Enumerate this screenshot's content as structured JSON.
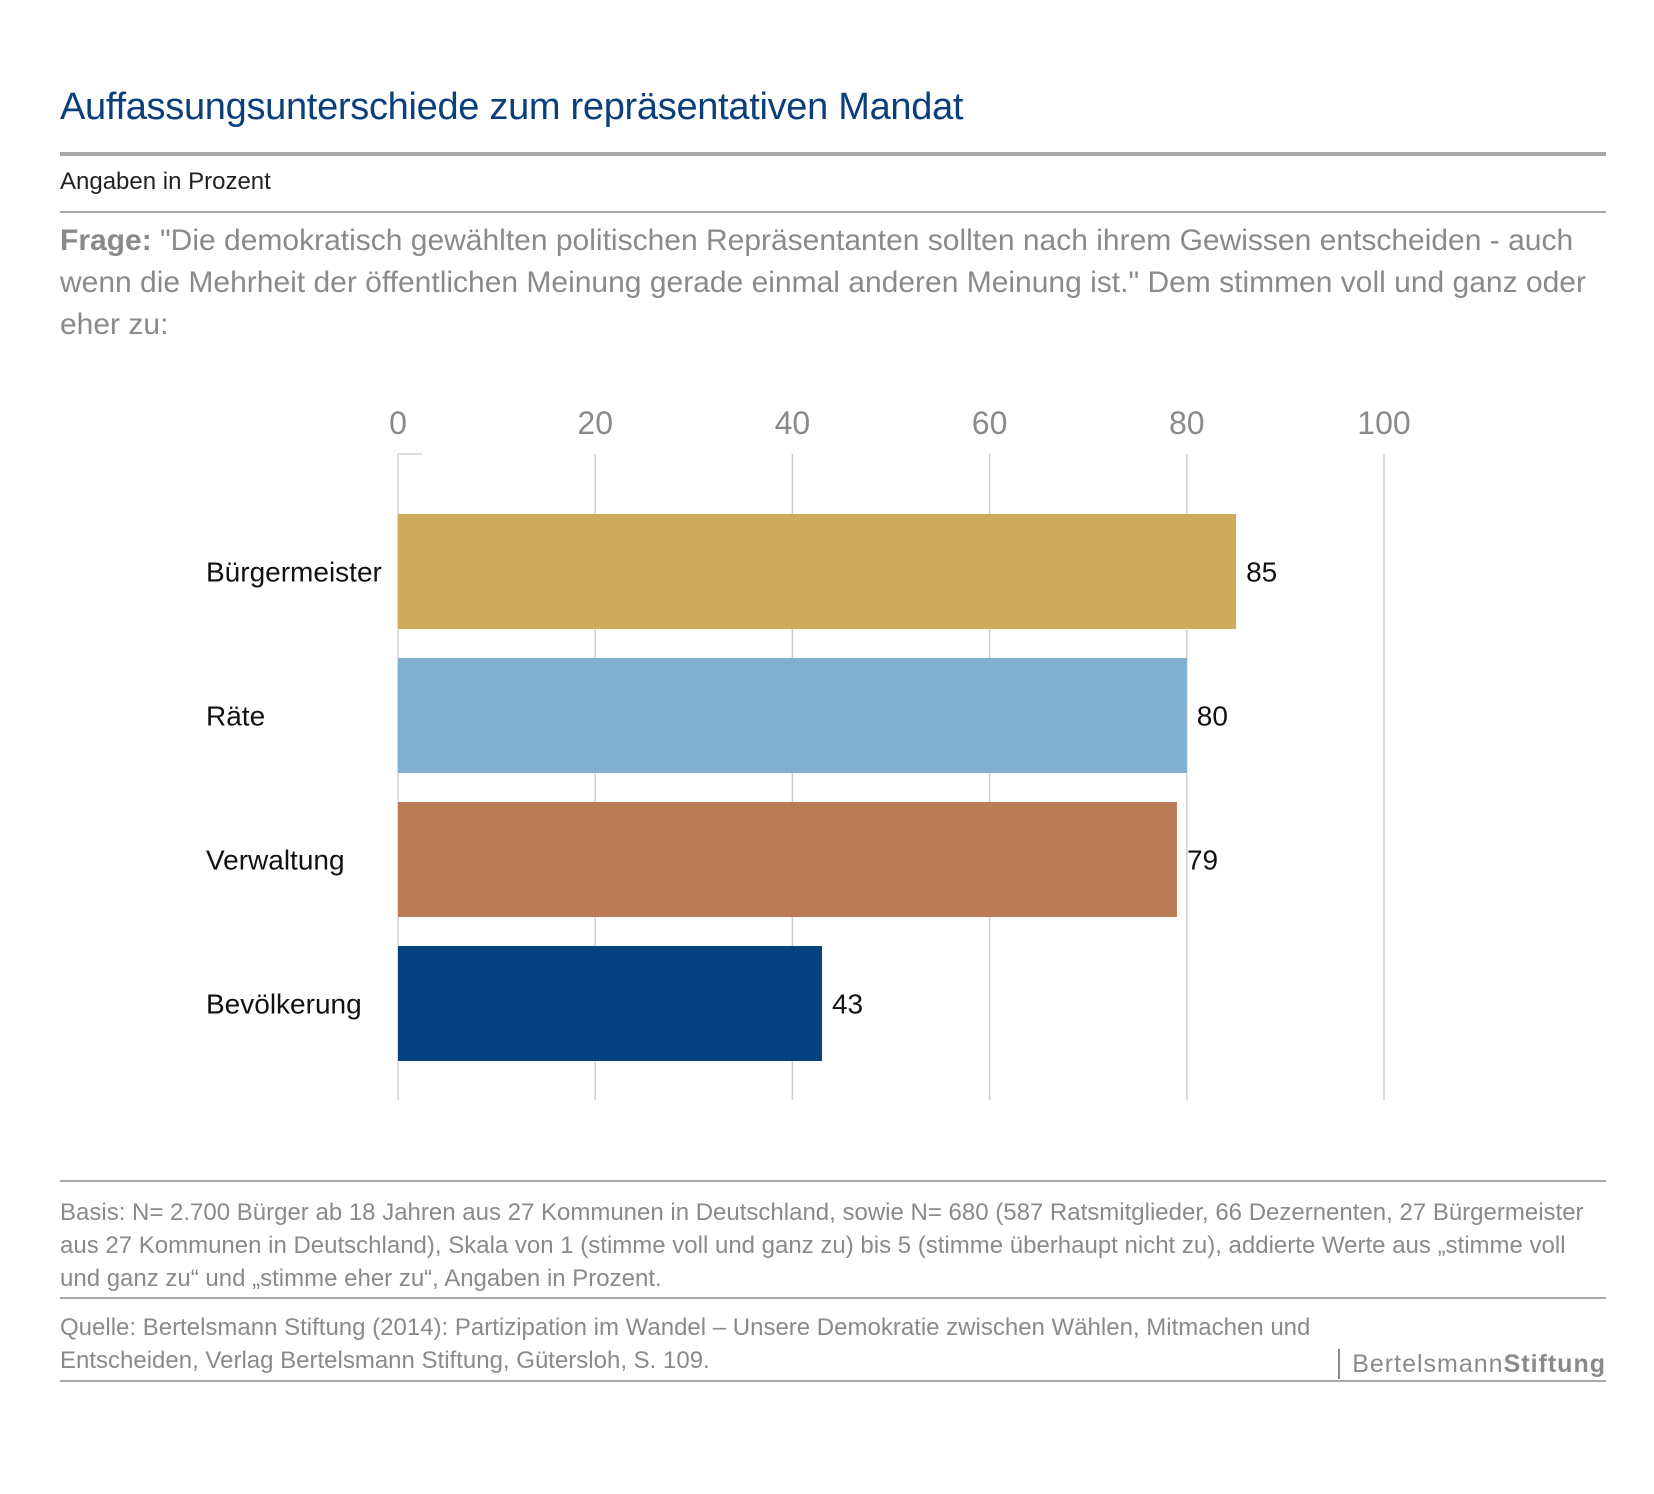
{
  "header": {
    "title": "Auffassungsunterschiede zum repräsentativen Mandat",
    "subtitle": "Angaben in Prozent",
    "question_label": "Frage:",
    "question_text": "\"Die demokratisch gewählten politischen Repräsentanten sollten nach ihrem Gewissen entscheiden - auch wenn die Mehrheit der öffentlichen Meinung gerade einmal anderen Meinung ist.\" Dem stimmen voll und ganz oder eher zu:"
  },
  "chart_data": {
    "type": "bar",
    "orientation": "horizontal",
    "categories": [
      "Bürgermeister",
      "Räte",
      "Verwaltung",
      "Bevölkerung"
    ],
    "values": [
      85,
      80,
      79,
      43
    ],
    "colors": [
      "#cdaa5c",
      "#7fb0cf",
      "#b97c54",
      "#03427f"
    ],
    "xlim": [
      0,
      100
    ],
    "xticks": [
      "0",
      "20",
      "40",
      "60",
      "80",
      "100"
    ],
    "grid": true,
    "axis_position": "top"
  },
  "footer": {
    "basis": "Basis: N= 2.700 Bürger ab 18 Jahren aus 27 Kommunen in Deutschland, sowie N= 680 (587 Ratsmitglieder, 66 Dezernenten, 27 Bürgermeister aus 27 Kommunen in Deutschland), Skala von 1 (stimme voll und ganz zu) bis 5 (stimme überhaupt nicht zu), addierte Werte aus „stimme voll und ganz zu“ und „stimme eher zu“, Angaben in Prozent.",
    "source": "Quelle: Bertelsmann Stiftung (2014): Partizipation im Wandel – Unsere Demokratie zwischen Wählen, Mitmachen und Entscheiden, Verlag Bertelsmann Stiftung, Gütersloh, S. 109.",
    "logo_part1": "Bertelsmann",
    "logo_part2": "Stiftung"
  }
}
